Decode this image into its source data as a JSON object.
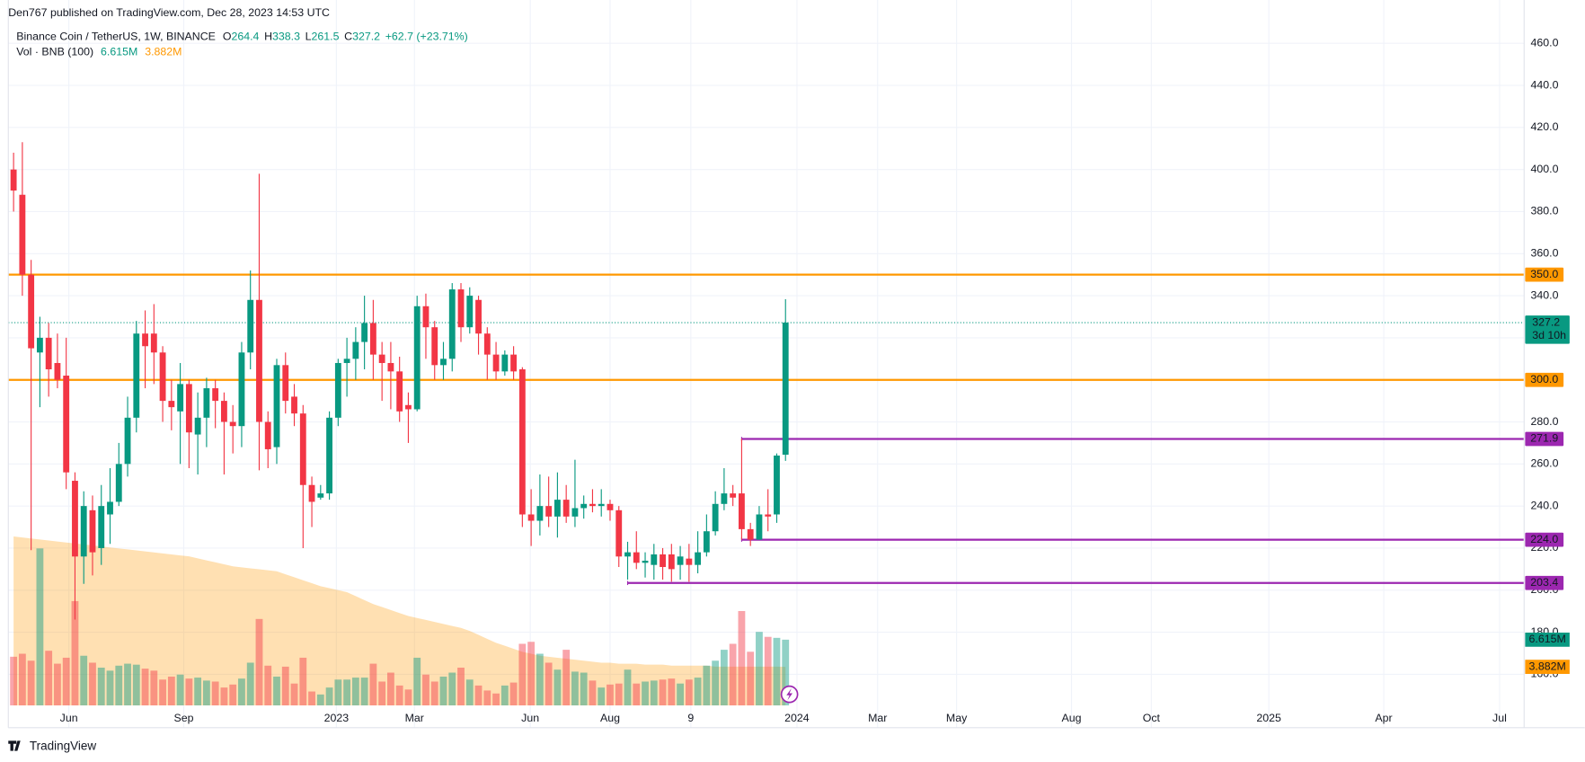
{
  "header": {
    "publisher": "Den767 published on TradingView.com, Dec 28, 2023 14:53 UTC",
    "footer": "TradingView"
  },
  "chart_data": {
    "type": "candlestick",
    "title": "Binance Coin / TetherUS, 1W, BINANCE",
    "ohlc_legend": [
      {
        "key": "O",
        "value": "264.4"
      },
      {
        "key": "H",
        "value": "338.3"
      },
      {
        "key": "L",
        "value": "261.5"
      },
      {
        "key": "C",
        "value": "327.2"
      }
    ],
    "change": "+62.7 (+23.71%)",
    "up_color": "#089981",
    "down_color": "#f23645",
    "grid": true,
    "xlim": [
      -0.6,
      172.2
    ],
    "xticks": [
      {
        "value": 6.3,
        "label": "Jun"
      },
      {
        "value": 19.4,
        "label": "Sep"
      },
      {
        "value": 36.8,
        "label": "2023"
      },
      {
        "value": 45.7,
        "label": "Mar"
      },
      {
        "value": 58.9,
        "label": "Jun"
      },
      {
        "value": 68.0,
        "label": "Aug"
      },
      {
        "value": 77.2,
        "label": "9"
      },
      {
        "value": 89.3,
        "label": "2024"
      },
      {
        "value": 98.5,
        "label": "Mar"
      },
      {
        "value": 107.5,
        "label": "May"
      },
      {
        "value": 120.6,
        "label": "Aug"
      },
      {
        "value": 129.7,
        "label": "Oct"
      },
      {
        "value": 143.1,
        "label": "2025"
      },
      {
        "value": 156.2,
        "label": "Apr"
      },
      {
        "value": 169.4,
        "label": "Jul"
      }
    ],
    "ylim": [
      145.2,
      480.6
    ],
    "yticks": [
      {
        "value": 160,
        "label": "160.0"
      },
      {
        "value": 180,
        "label": "180.0"
      },
      {
        "value": 200,
        "label": "200.0"
      },
      {
        "value": 220,
        "label": "220.0"
      },
      {
        "value": 240,
        "label": "240.0"
      },
      {
        "value": 260,
        "label": "260.0"
      },
      {
        "value": 280,
        "label": "280.0"
      },
      {
        "value": 300,
        "label": "300.0"
      },
      {
        "value": 320,
        "label": "320.0"
      },
      {
        "value": 340,
        "label": "340.0"
      },
      {
        "value": 360,
        "label": "360.0"
      },
      {
        "value": 380,
        "label": "380.0"
      },
      {
        "value": 400,
        "label": "400.0"
      },
      {
        "value": 420,
        "label": "420.0"
      },
      {
        "value": 440,
        "label": "440.0"
      },
      {
        "value": 460,
        "label": "460.0"
      }
    ],
    "open": [
      400,
      388,
      350,
      313,
      320,
      308,
      302,
      252,
      216,
      238,
      220,
      236,
      242,
      260,
      282,
      322,
      322,
      313,
      290,
      285,
      298,
      274,
      282,
      296,
      290,
      280,
      278,
      313,
      338,
      280,
      268,
      307,
      292,
      284,
      250,
      244,
      246,
      282,
      308,
      310,
      318,
      327,
      312,
      308,
      304,
      288,
      286,
      335,
      325,
      307,
      310,
      343,
      325,
      338,
      322,
      312,
      304,
      312,
      305,
      236,
      233,
      240,
      235,
      243,
      235,
      239,
      241,
      240,
      241,
      238,
      216,
      218,
      213,
      212,
      217,
      217,
      212,
      215,
      212,
      218,
      228,
      241,
      246,
      246,
      229,
      224,
      236,
      236,
      264.4
    ],
    "high": [
      408,
      413,
      357,
      330,
      327,
      322,
      320,
      256,
      247,
      245,
      250,
      258,
      270,
      292,
      328,
      333,
      336,
      316,
      300,
      308,
      300,
      294,
      301,
      300,
      294,
      288,
      318,
      352,
      398,
      285,
      310,
      313,
      298,
      288,
      254,
      250,
      285,
      310,
      320,
      325,
      340,
      338,
      318,
      318,
      311,
      294,
      340,
      341,
      328,
      318,
      346,
      346,
      344,
      340,
      325,
      318,
      314,
      316,
      306,
      248,
      255,
      254,
      256,
      250,
      262,
      245,
      248,
      248,
      243,
      240,
      223,
      228,
      218,
      222,
      220,
      222,
      221,
      222,
      228,
      236,
      247,
      258,
      250,
      272,
      232,
      240,
      248,
      265,
      338.3
    ],
    "low": [
      380,
      340,
      219,
      287,
      292,
      296,
      248,
      186,
      203,
      207,
      212,
      222,
      240,
      254,
      275,
      296,
      298,
      280,
      276,
      260,
      258,
      255,
      268,
      277,
      255,
      265,
      268,
      305,
      257,
      258,
      260,
      284,
      278,
      220,
      230,
      243,
      243,
      278,
      292,
      300,
      305,
      300,
      290,
      286,
      280,
      270,
      285,
      310,
      300,
      300,
      304,
      318,
      322,
      312,
      300,
      300,
      302,
      300,
      230,
      221,
      226,
      230,
      225,
      232,
      230,
      234,
      237,
      235,
      233,
      211,
      205,
      210,
      206,
      205,
      205,
      204,
      205,
      204,
      208,
      216,
      226,
      238,
      240,
      224,
      221,
      227,
      228,
      232,
      261.5
    ],
    "close": [
      390,
      350,
      315,
      320,
      305,
      300,
      256,
      216,
      240,
      218,
      240,
      242,
      260,
      282,
      322,
      316,
      313,
      290,
      287,
      298,
      275,
      282,
      296,
      290,
      280,
      278,
      313,
      338,
      280,
      267,
      307,
      290,
      284,
      250,
      242,
      246,
      282,
      308,
      310,
      318,
      327,
      312,
      308,
      304,
      285,
      286,
      335,
      325,
      307,
      310,
      343,
      325,
      340,
      322,
      312,
      304,
      312,
      304,
      236,
      233,
      240,
      235,
      243,
      235,
      239,
      241,
      240,
      241,
      238,
      216,
      218,
      213,
      214,
      217,
      211,
      210,
      216,
      212,
      218,
      228,
      241,
      246,
      244,
      229,
      224,
      236,
      235,
      264,
      327.2
    ],
    "last": {
      "value": 327.2,
      "label": "327.2",
      "countdown": "3d 10h"
    },
    "levels": [
      {
        "value": 350,
        "label": "350.0",
        "color": "#ff9800"
      },
      {
        "value": 300,
        "label": "300.0",
        "color": "#ff9800"
      },
      {
        "value": 271.9,
        "label": "271.9",
        "color": "#9c27b0",
        "from": 83
      },
      {
        "value": 224,
        "label": "224.0",
        "color": "#9c27b0",
        "from": 83
      },
      {
        "value": 203.4,
        "label": "203.4",
        "color": "#9c27b0",
        "from": 70
      }
    ],
    "volume": {
      "title": "Vol · BNB (100)",
      "ylim": [
        0,
        71
      ],
      "values": [
        4.9,
        5.2,
        4.5,
        15.8,
        5.5,
        4.2,
        4.8,
        10.5,
        5.0,
        4.3,
        3.8,
        3.5,
        4.0,
        4.2,
        4.1,
        3.7,
        3.5,
        2.6,
        2.9,
        3.1,
        2.7,
        2.8,
        2.5,
        2.4,
        1.8,
        2.1,
        2.7,
        4.3,
        8.7,
        4.0,
        2.9,
        3.9,
        2.2,
        4.8,
        1.4,
        1.1,
        1.8,
        2.6,
        2.6,
        2.8,
        2.8,
        4.2,
        2.4,
        3.3,
        2.0,
        1.6,
        4.8,
        3.1,
        2.4,
        2.9,
        3.3,
        3.8,
        2.6,
        2.0,
        1.5,
        1.2,
        2.0,
        2.3,
        6.2,
        6.4,
        5.2,
        4.3,
        3.6,
        5.6,
        3.4,
        3.3,
        2.5,
        1.8,
        2.1,
        2.2,
        3.6,
        2.2,
        2.4,
        2.5,
        2.6,
        2.7,
        2.2,
        2.6,
        2.8,
        4.0,
        4.5,
        5.6,
        6.2,
        9.5,
        5.4,
        7.4,
        6.9,
        6.8,
        6.615
      ],
      "value_label": "6.615M",
      "ma": {
        "color": "#ff9800",
        "label": "3.882M",
        "values": [
          17.0,
          16.9,
          16.8,
          16.7,
          16.6,
          16.5,
          16.4,
          16.3,
          16.2,
          16.1,
          16.0,
          15.9,
          15.8,
          15.7,
          15.6,
          15.5,
          15.4,
          15.3,
          15.2,
          15.1,
          15.0,
          14.8,
          14.6,
          14.4,
          14.2,
          14.0,
          13.9,
          13.8,
          13.7,
          13.6,
          13.5,
          13.2,
          12.9,
          12.6,
          12.3,
          12.0,
          11.8,
          11.6,
          11.4,
          11.0,
          10.6,
          10.2,
          9.9,
          9.6,
          9.3,
          9.0,
          8.8,
          8.6,
          8.4,
          8.2,
          8.0,
          7.8,
          7.5,
          7.1,
          6.7,
          6.3,
          6.0,
          5.7,
          5.4,
          5.2,
          5.0,
          4.9,
          4.8,
          4.7,
          4.6,
          4.5,
          4.4,
          4.3,
          4.3,
          4.2,
          4.2,
          4.2,
          4.1,
          4.1,
          4.1,
          4.0,
          4.0,
          4.0,
          4.0,
          4.0,
          3.9,
          3.9,
          3.9,
          3.9,
          3.9,
          3.9,
          3.9,
          3.9,
          3.882
        ]
      }
    }
  }
}
